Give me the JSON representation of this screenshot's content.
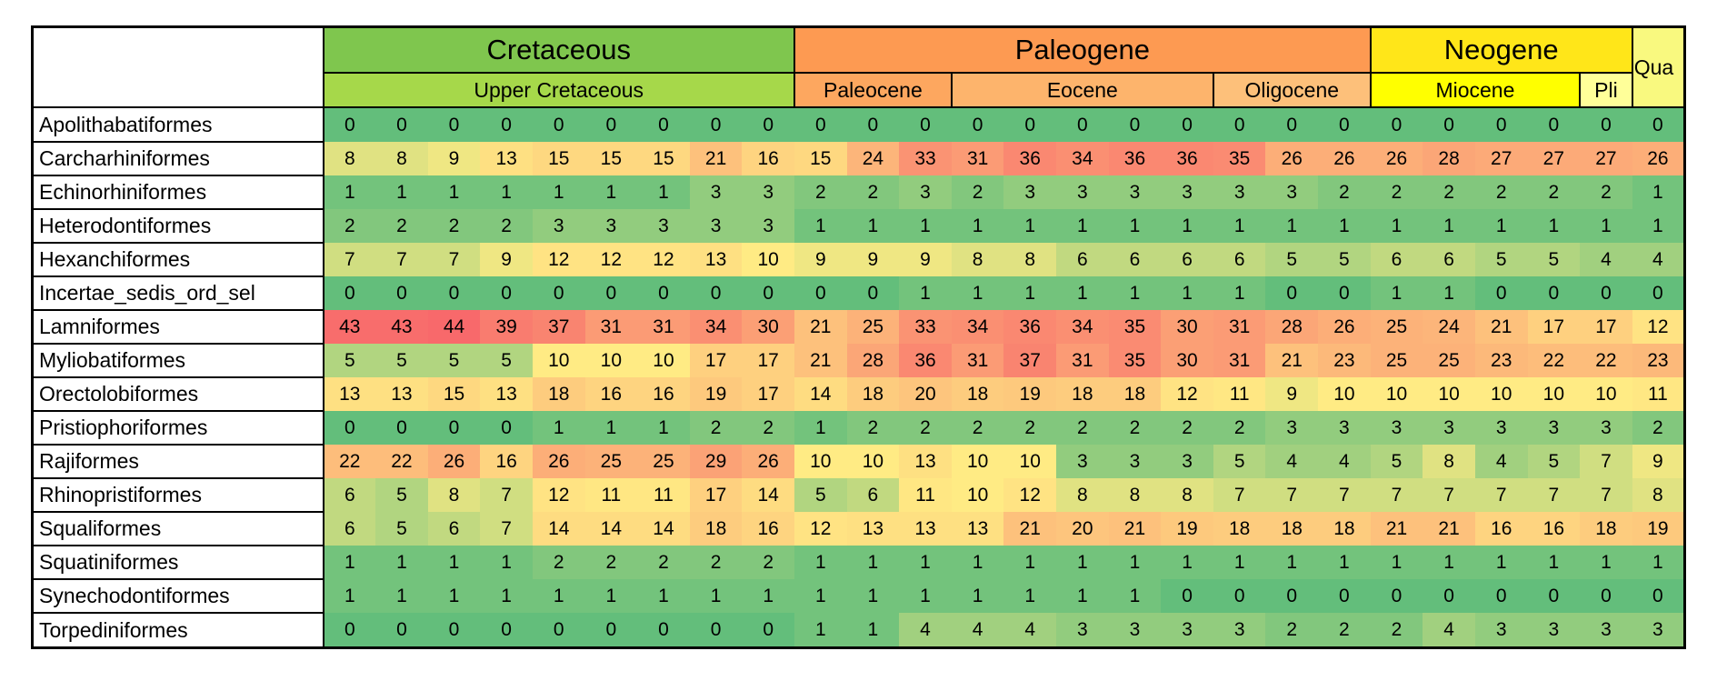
{
  "chart_data": {
    "type": "heatmap",
    "title": "",
    "legend_position": "none",
    "grid": false,
    "eras": [
      {
        "label": "Cretaceous",
        "span": 9,
        "color": "#7FC64E"
      },
      {
        "label": "Paleogene",
        "span": 11,
        "color": "#FD9A52"
      },
      {
        "label": "Neogene",
        "span": 5,
        "color": "#FFE619"
      },
      {
        "label": "Qua",
        "span": 1,
        "rowspan": 2,
        "color": "#F9F97F"
      }
    ],
    "epochs": [
      {
        "label": "Upper Cretaceous",
        "span": 9,
        "color": "#A6D84A"
      },
      {
        "label": "Paleocene",
        "span": 3,
        "color": "#FDA75F"
      },
      {
        "label": "Eocene",
        "span": 5,
        "color": "#FDB46C"
      },
      {
        "label": "Oligocene",
        "span": 3,
        "color": "#FDC07A"
      },
      {
        "label": "Miocene",
        "span": 4,
        "color": "#FFFF00"
      },
      {
        "label": "Pli",
        "span": 1,
        "color": "#FFFF99"
      }
    ],
    "row_labels": [
      "Apolithabatiformes",
      "Carcharhiniformes",
      "Echinorhiniformes",
      "Heterodontiformes",
      "Hexanchiformes",
      "Incertae_sedis_ord_sel",
      "Lamniformes",
      "Myliobatiformes",
      "Orectolobiformes",
      "Pristiophoriformes",
      "Rajiformes",
      "Rhinopristiformes",
      "Squaliformes",
      "Squatiniformes",
      "Synechodontiformes",
      "Torpediniformes"
    ],
    "values": [
      [
        0,
        0,
        0,
        0,
        0,
        0,
        0,
        0,
        0,
        0,
        0,
        0,
        0,
        0,
        0,
        0,
        0,
        0,
        0,
        0,
        0,
        0,
        0,
        0,
        0,
        0
      ],
      [
        8,
        8,
        9,
        13,
        15,
        15,
        15,
        21,
        16,
        15,
        24,
        33,
        31,
        36,
        34,
        36,
        36,
        35,
        26,
        26,
        26,
        28,
        27,
        27,
        27,
        26
      ],
      [
        1,
        1,
        1,
        1,
        1,
        1,
        1,
        3,
        3,
        2,
        2,
        3,
        2,
        3,
        3,
        3,
        3,
        3,
        3,
        2,
        2,
        2,
        2,
        2,
        2,
        1
      ],
      [
        2,
        2,
        2,
        2,
        3,
        3,
        3,
        3,
        3,
        1,
        1,
        1,
        1,
        1,
        1,
        1,
        1,
        1,
        1,
        1,
        1,
        1,
        1,
        1,
        1,
        1
      ],
      [
        7,
        7,
        7,
        9,
        12,
        12,
        12,
        13,
        10,
        9,
        9,
        9,
        8,
        8,
        6,
        6,
        6,
        6,
        5,
        5,
        6,
        6,
        5,
        5,
        4,
        4
      ],
      [
        0,
        0,
        0,
        0,
        0,
        0,
        0,
        0,
        0,
        0,
        0,
        1,
        1,
        1,
        1,
        1,
        1,
        1,
        0,
        0,
        1,
        1,
        0,
        0,
        0,
        0
      ],
      [
        43,
        43,
        44,
        39,
        37,
        31,
        31,
        34,
        30,
        21,
        25,
        33,
        34,
        36,
        34,
        35,
        30,
        31,
        28,
        26,
        25,
        24,
        21,
        17,
        17,
        12
      ],
      [
        5,
        5,
        5,
        5,
        10,
        10,
        10,
        17,
        17,
        21,
        28,
        36,
        31,
        37,
        31,
        35,
        30,
        31,
        21,
        23,
        25,
        25,
        23,
        22,
        22,
        23
      ],
      [
        13,
        13,
        15,
        13,
        18,
        16,
        16,
        19,
        17,
        14,
        18,
        20,
        18,
        19,
        18,
        18,
        12,
        11,
        9,
        10,
        10,
        10,
        10,
        10,
        10,
        11
      ],
      [
        0,
        0,
        0,
        0,
        1,
        1,
        1,
        2,
        2,
        1,
        2,
        2,
        2,
        2,
        2,
        2,
        2,
        2,
        3,
        3,
        3,
        3,
        3,
        3,
        3,
        2
      ],
      [
        22,
        22,
        26,
        16,
        26,
        25,
        25,
        29,
        26,
        10,
        10,
        13,
        10,
        10,
        3,
        3,
        3,
        5,
        4,
        4,
        5,
        8,
        4,
        5,
        7,
        9
      ],
      [
        6,
        5,
        8,
        7,
        12,
        11,
        11,
        17,
        14,
        5,
        6,
        11,
        10,
        12,
        8,
        8,
        8,
        7,
        7,
        7,
        7,
        7,
        7,
        7,
        7,
        8
      ],
      [
        6,
        5,
        6,
        7,
        14,
        14,
        14,
        18,
        16,
        12,
        13,
        13,
        13,
        21,
        20,
        21,
        19,
        18,
        18,
        18,
        21,
        21,
        16,
        16,
        18,
        19
      ],
      [
        1,
        1,
        1,
        1,
        2,
        2,
        2,
        2,
        2,
        1,
        1,
        1,
        1,
        1,
        1,
        1,
        1,
        1,
        1,
        1,
        1,
        1,
        1,
        1,
        1,
        1
      ],
      [
        1,
        1,
        1,
        1,
        1,
        1,
        1,
        1,
        1,
        1,
        1,
        1,
        1,
        1,
        1,
        1,
        0,
        0,
        0,
        0,
        0,
        0,
        0,
        0,
        0,
        0
      ],
      [
        0,
        0,
        0,
        0,
        0,
        0,
        0,
        0,
        0,
        1,
        1,
        4,
        4,
        4,
        3,
        3,
        3,
        3,
        2,
        2,
        2,
        4,
        3,
        3,
        3,
        3
      ]
    ],
    "color_scale": {
      "min": 0,
      "mid_value": 10,
      "max": 44,
      "low": "#63BE7B",
      "mid": "#FFEB84",
      "high": "#F8696B"
    }
  }
}
